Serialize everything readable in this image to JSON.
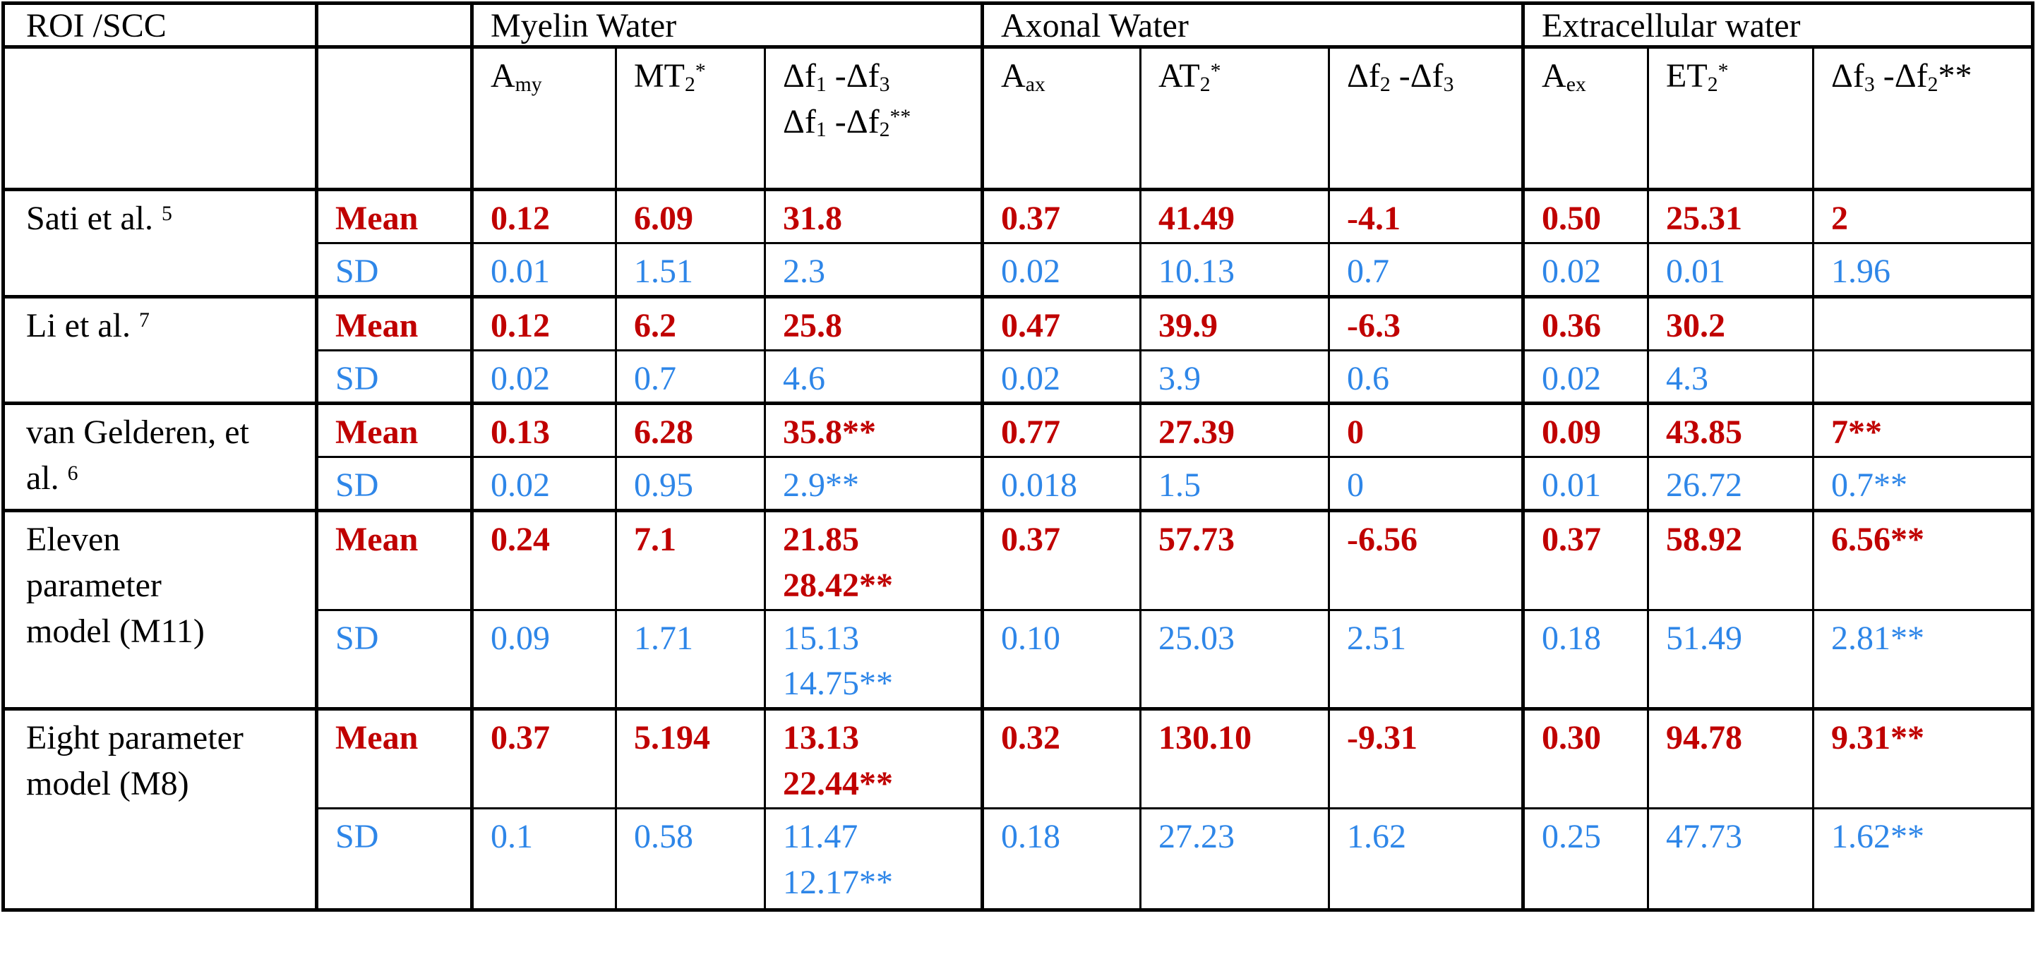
{
  "table": {
    "corner_header": "ROI /SCC",
    "stat_labels": {
      "mean": "Mean",
      "sd": "SD"
    },
    "colors": {
      "mean": "#C00000",
      "sd": "#2E86E8",
      "border": "#000000",
      "background": "#ffffff"
    },
    "groups": [
      "Myelin Water",
      "Axonal Water",
      "Extracellular water"
    ],
    "sub_headers": [
      [
        "A",
        {
          "t": "my",
          "s": "sub"
        }
      ],
      [
        "MT",
        {
          "t": "2",
          "s": "sub"
        },
        {
          "t": "*",
          "s": "sup"
        }
      ],
      [
        "Δf",
        {
          "t": "1",
          "s": "sub"
        },
        " -Δf",
        {
          "t": "3",
          "s": "sub"
        },
        {
          "br": true
        },
        "Δf",
        {
          "t": "1",
          "s": "sub"
        },
        " -Δf",
        {
          "t": "2",
          "s": "sub"
        },
        {
          "t": "**",
          "s": "sup"
        }
      ],
      [
        "A",
        {
          "t": "ax",
          "s": "sub"
        }
      ],
      [
        "AT",
        {
          "t": "2",
          "s": "sub"
        },
        {
          "t": "*",
          "s": "sup"
        }
      ],
      [
        "Δf",
        {
          "t": "2",
          "s": "sub"
        },
        " -Δf",
        {
          "t": "3",
          "s": "sub"
        }
      ],
      [
        "A",
        {
          "t": "ex",
          "s": "sub"
        }
      ],
      [
        "ET",
        {
          "t": "2",
          "s": "sub"
        },
        {
          "t": "*",
          "s": "sup"
        }
      ],
      [
        "Δf",
        {
          "t": "3",
          "s": "sub"
        },
        " -Δf",
        {
          "t": "2",
          "s": "sub"
        },
        "**"
      ]
    ],
    "rows": [
      {
        "label": [
          "Sati et al. ",
          {
            "t": "5",
            "s": "sup"
          }
        ],
        "mean": [
          "0.12",
          "6.09",
          "31.8",
          "0.37",
          "41.49",
          "-4.1",
          "0.50",
          "25.31",
          "2"
        ],
        "sd": [
          "0.01",
          "1.51",
          "2.3",
          "0.02",
          "10.13",
          "0.7",
          "0.02",
          "0.01",
          "1.96"
        ]
      },
      {
        "label": [
          "Li et al. ",
          {
            "t": "7",
            "s": "sup"
          }
        ],
        "mean": [
          "0.12",
          "6.2",
          "25.8",
          "0.47",
          "39.9",
          "-6.3",
          "0.36",
          "30.2",
          ""
        ],
        "sd": [
          "0.02",
          "0.7",
          "4.6",
          "0.02",
          "3.9",
          "0.6",
          "0.02",
          "4.3",
          ""
        ]
      },
      {
        "label": [
          "van Gelderen, et",
          {
            "br": true
          },
          "al. ",
          {
            "t": "6",
            "s": "sup"
          }
        ],
        "mean": [
          "0.13",
          "6.28",
          "35.8**",
          "0.77",
          "27.39",
          "0",
          "0.09",
          "43.85",
          "7**"
        ],
        "sd": [
          "0.02",
          "0.95",
          "2.9**",
          "0.018",
          "1.5",
          "0",
          "0.01",
          "26.72",
          "0.7**"
        ]
      },
      {
        "label": [
          "Eleven",
          {
            "br": true
          },
          "parameter",
          {
            "br": true
          },
          "model (M11)"
        ],
        "mean": [
          "0.24",
          "7.1",
          [
            "21.85",
            {
              "br": true
            },
            "28.42**"
          ],
          "0.37",
          "57.73",
          "-6.56",
          "0.37",
          "58.92",
          "6.56**"
        ],
        "sd": [
          "0.09",
          "1.71",
          [
            "15.13",
            {
              "br": true
            },
            "14.75**"
          ],
          "0.10",
          "25.03",
          "2.51",
          "0.18",
          "51.49",
          "2.81**"
        ]
      },
      {
        "label": [
          "Eight parameter",
          {
            "br": true
          },
          "model (M8)"
        ],
        "mean": [
          "0.37",
          "5.194",
          [
            "13.13",
            {
              "br": true
            },
            "22.44**"
          ],
          "0.32",
          "130.10",
          "-9.31",
          "0.30",
          "94.78",
          "9.31**"
        ],
        "sd": [
          "0.1",
          "0.58",
          [
            "11.47",
            {
              "br": true
            },
            "12.17**"
          ],
          "0.18",
          "27.23",
          "1.62",
          "0.25",
          "47.73",
          "1.62**"
        ]
      }
    ]
  }
}
